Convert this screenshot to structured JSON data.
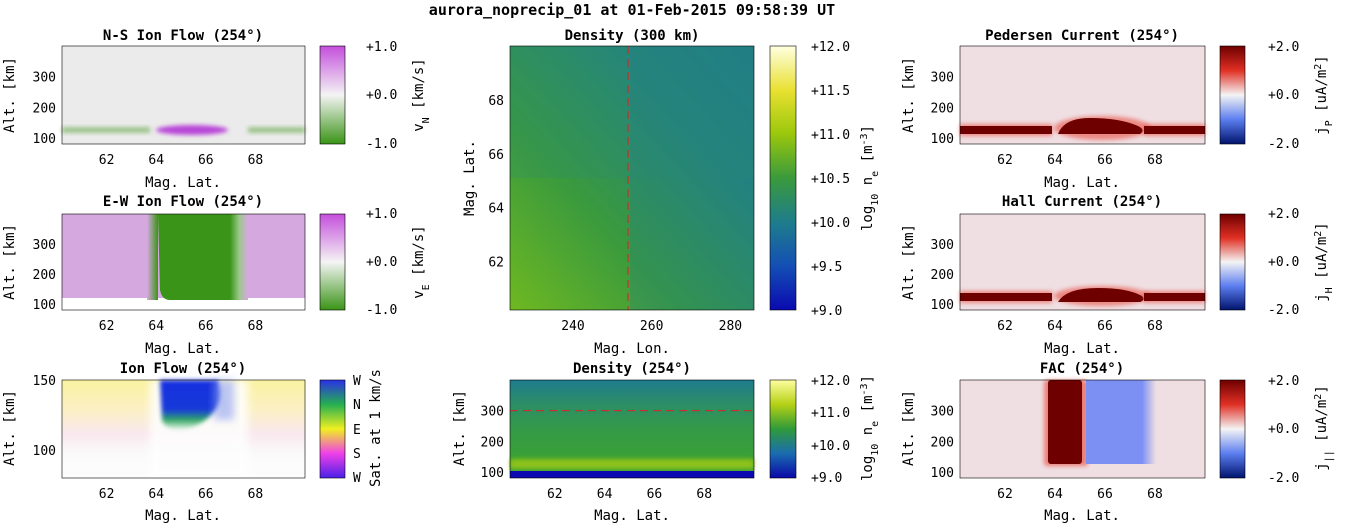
{
  "figure": {
    "title": "aurora_noprecip_01 at 01-Feb-2015 09:58:39 UT"
  },
  "chart_data": [
    {
      "id": "ns-flow",
      "type": "heatmap",
      "title": "N-S Ion Flow (254°)",
      "xlabel": "Mag. Lat.",
      "ylabel": "Alt. [km]",
      "x_ticks": [
        "62",
        "64",
        "66",
        "68"
      ],
      "y_ticks": [
        "100",
        "200",
        "300"
      ],
      "xlim": [
        60.2,
        70.0
      ],
      "ylim": [
        80,
        400
      ],
      "colorbar": {
        "label": "v_N [km/s]",
        "ticks": [
          "+1.0",
          "+0.0",
          "-1.0"
        ],
        "range": [
          -1.0,
          1.0
        ]
      }
    },
    {
      "id": "ew-flow",
      "type": "heatmap",
      "title": "E-W Ion Flow (254°)",
      "xlabel": "Mag. Lat.",
      "ylabel": "Alt. [km]",
      "x_ticks": [
        "62",
        "64",
        "66",
        "68"
      ],
      "y_ticks": [
        "100",
        "200",
        "300"
      ],
      "xlim": [
        60.2,
        70.0
      ],
      "ylim": [
        80,
        400
      ],
      "colorbar": {
        "label": "v_E [km/s]",
        "ticks": [
          "+1.0",
          "+0.0",
          "-1.0"
        ],
        "range": [
          -1.0,
          1.0
        ]
      }
    },
    {
      "id": "ion-flow",
      "type": "heatmap",
      "title": "Ion Flow (254°)",
      "xlabel": "Mag. Lat.",
      "ylabel": "Alt. [km]",
      "x_ticks": [
        "62",
        "64",
        "66",
        "68"
      ],
      "y_ticks": [
        "100",
        "150"
      ],
      "xlim": [
        60.2,
        70.0
      ],
      "ylim": [
        80,
        150
      ],
      "colorbar": {
        "label": "Sat. at 1 km/s",
        "ticks": [
          "W",
          "N",
          "E",
          "S",
          "W"
        ]
      }
    },
    {
      "id": "density-300",
      "type": "heatmap",
      "title": "Density (300 km)",
      "xlabel": "Mag. Lon.",
      "ylabel": "Mag. Lat.",
      "x_ticks": [
        "240",
        "260",
        "280"
      ],
      "y_ticks": [
        "62",
        "64",
        "66",
        "68"
      ],
      "xlim": [
        224,
        286
      ],
      "ylim": [
        60.2,
        70.0
      ],
      "marker_line": {
        "orientation": "vertical",
        "value": 254
      },
      "colorbar": {
        "label": "log10 n_e [m^-3]",
        "ticks": [
          "+12.0",
          "+11.5",
          "+11.0",
          "+10.5",
          "+10.0",
          "+9.5",
          "+9.0"
        ],
        "range": [
          9.0,
          12.0
        ]
      }
    },
    {
      "id": "density-254",
      "type": "heatmap",
      "title": "Density (254°)",
      "xlabel": "Mag. Lat.",
      "ylabel": "Alt. [km]",
      "x_ticks": [
        "62",
        "64",
        "66",
        "68"
      ],
      "y_ticks": [
        "100",
        "200",
        "300"
      ],
      "xlim": [
        60.2,
        70.0
      ],
      "ylim": [
        80,
        400
      ],
      "marker_line": {
        "orientation": "horizontal",
        "value": 300
      },
      "colorbar": {
        "label": "log10 n_e [m^-3]",
        "ticks": [
          "+12.0",
          "+11.0",
          "+10.0",
          "+9.0"
        ],
        "range": [
          9.0,
          12.0
        ]
      }
    },
    {
      "id": "pedersen",
      "type": "heatmap",
      "title": "Pedersen Current (254°)",
      "xlabel": "Mag. Lat.",
      "ylabel": "Alt. [km]",
      "x_ticks": [
        "62",
        "64",
        "66",
        "68"
      ],
      "y_ticks": [
        "100",
        "200",
        "300"
      ],
      "xlim": [
        60.2,
        70.0
      ],
      "ylim": [
        80,
        400
      ],
      "colorbar": {
        "label": "j_P [uA/m^2]",
        "ticks": [
          "+2.0",
          "+0.0",
          "-2.0"
        ],
        "range": [
          -2.0,
          2.0
        ]
      }
    },
    {
      "id": "hall",
      "type": "heatmap",
      "title": "Hall Current (254°)",
      "xlabel": "Mag. Lat.",
      "ylabel": "Alt. [km]",
      "x_ticks": [
        "62",
        "64",
        "66",
        "68"
      ],
      "y_ticks": [
        "100",
        "200",
        "300"
      ],
      "xlim": [
        60.2,
        70.0
      ],
      "ylim": [
        80,
        400
      ],
      "colorbar": {
        "label": "j_H [uA/m^2]",
        "ticks": [
          "+2.0",
          "+0.0",
          "-2.0"
        ],
        "range": [
          -2.0,
          2.0
        ]
      }
    },
    {
      "id": "fac",
      "type": "heatmap",
      "title": "FAC (254°)",
      "xlabel": "Mag. Lat.",
      "ylabel": "Alt. [km]",
      "x_ticks": [
        "62",
        "64",
        "66",
        "68"
      ],
      "y_ticks": [
        "100",
        "200",
        "300"
      ],
      "xlim": [
        60.2,
        70.0
      ],
      "ylim": [
        80,
        400
      ],
      "colorbar": {
        "label": "j_|| [uA/m^2]",
        "ticks": [
          "+2.0",
          "+0.0",
          "-2.0"
        ],
        "range": [
          -2.0,
          2.0
        ]
      }
    }
  ]
}
